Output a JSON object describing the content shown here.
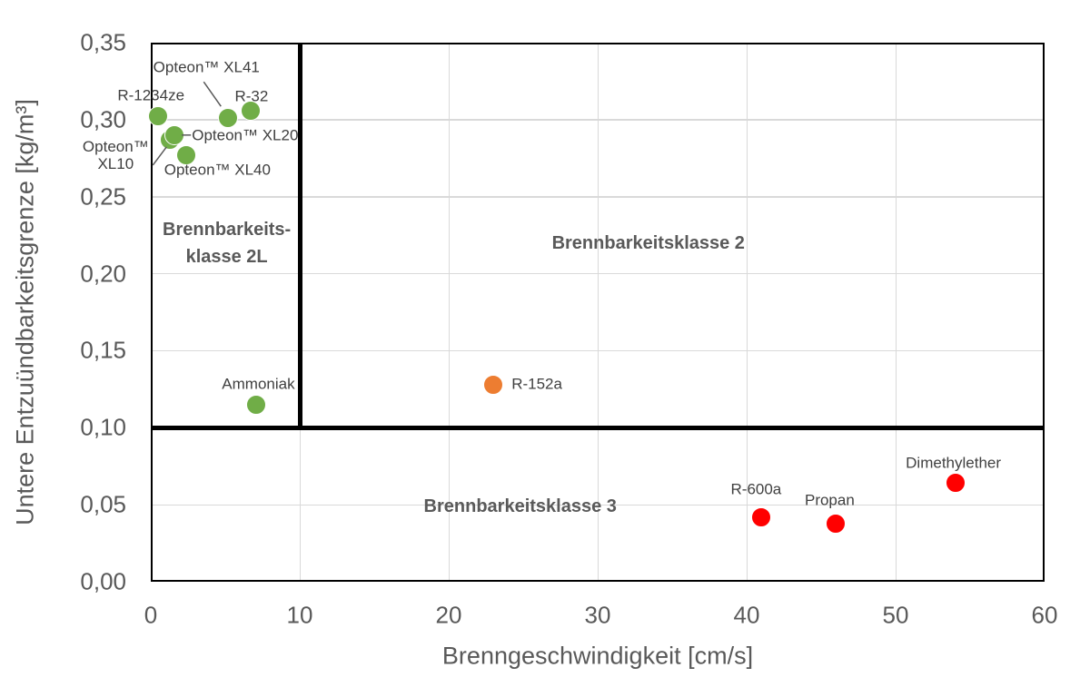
{
  "chart_data": {
    "type": "scatter",
    "title": "",
    "xlabel": "Brenngeschwindigkeit [cm/s]",
    "ylabel": "Untere Entzuündbarkeitsgrenze [kg/m³]",
    "xlim": [
      0,
      60
    ],
    "ylim": [
      0.0,
      0.35
    ],
    "grid": true,
    "legend": "none",
    "x_ticks": {
      "values": [
        0,
        10,
        20,
        30,
        40,
        50,
        60
      ],
      "labels": [
        "0",
        "10",
        "20",
        "30",
        "40",
        "50",
        "60"
      ]
    },
    "y_ticks": {
      "values": [
        0,
        0.05,
        0.1,
        0.15,
        0.2,
        0.25,
        0.3,
        0.35
      ],
      "labels": [
        "0,00",
        "0,05",
        "0,10",
        "0,15",
        "0,20",
        "0,25",
        "0,30",
        "0,35"
      ]
    },
    "class_boundaries": {
      "vertical_at_x": 10,
      "horizontal_at_y": 0.1,
      "line_color": "#000000"
    },
    "regions": [
      {
        "id": "klasse-2l",
        "lines": [
          "Brennbarkeits-",
          "klasse 2L"
        ],
        "x": 5.1,
        "y": 0.22
      },
      {
        "id": "klasse-2",
        "lines": [
          "Brennbarkeitsklasse 2"
        ],
        "x": 33.4,
        "y": 0.22
      },
      {
        "id": "klasse-3",
        "lines": [
          "Brennbarkeitsklasse 3"
        ],
        "x": 24.8,
        "y": 0.049
      }
    ],
    "points": [
      {
        "id": "r-1234ze",
        "label": "R-1234ze",
        "x": 0.5,
        "y": 0.302,
        "color": "#70AD47"
      },
      {
        "id": "opteon-xl10",
        "label": "Opteon™ XL10",
        "label_lines": [
          "Opteon™",
          "XL10"
        ],
        "x": 1.3,
        "y": 0.287,
        "color": "#70AD47"
      },
      {
        "id": "opteon-xl20",
        "label": "Opteon™ XL20",
        "x": 1.6,
        "y": 0.29,
        "color": "#70AD47"
      },
      {
        "id": "opteon-xl40",
        "label": "Opteon™ XL40",
        "x": 2.4,
        "y": 0.277,
        "color": "#70AD47"
      },
      {
        "id": "opteon-xl41",
        "label": "Opteon™ XL41",
        "x": 5.2,
        "y": 0.301,
        "color": "#70AD47"
      },
      {
        "id": "r-32",
        "label": "R-32",
        "x": 6.7,
        "y": 0.306,
        "color": "#70AD47"
      },
      {
        "id": "ammoniak",
        "label": "Ammoniak",
        "x": 7.1,
        "y": 0.115,
        "color": "#70AD47"
      },
      {
        "id": "r-152a",
        "label": "R-152a",
        "x": 23,
        "y": 0.128,
        "color": "#ED7D31"
      },
      {
        "id": "r-600a",
        "label": "R-600a",
        "x": 41,
        "y": 0.042,
        "color": "#FF0000"
      },
      {
        "id": "propan",
        "label": "Propan",
        "x": 46,
        "y": 0.038,
        "color": "#FF0000"
      },
      {
        "id": "dimethylether",
        "label": "Dimethylether",
        "x": 54,
        "y": 0.064,
        "color": "#FF0000"
      }
    ],
    "colors": {
      "class_2l_points": "#70AD47",
      "class_2_points": "#ED7D31",
      "class_3_points": "#FF0000",
      "axis_text": "#595959",
      "point_label_text": "#404040",
      "region_label_text": "#595959",
      "gridline": "#D9D9D9",
      "boundary_line": "#000000"
    }
  }
}
